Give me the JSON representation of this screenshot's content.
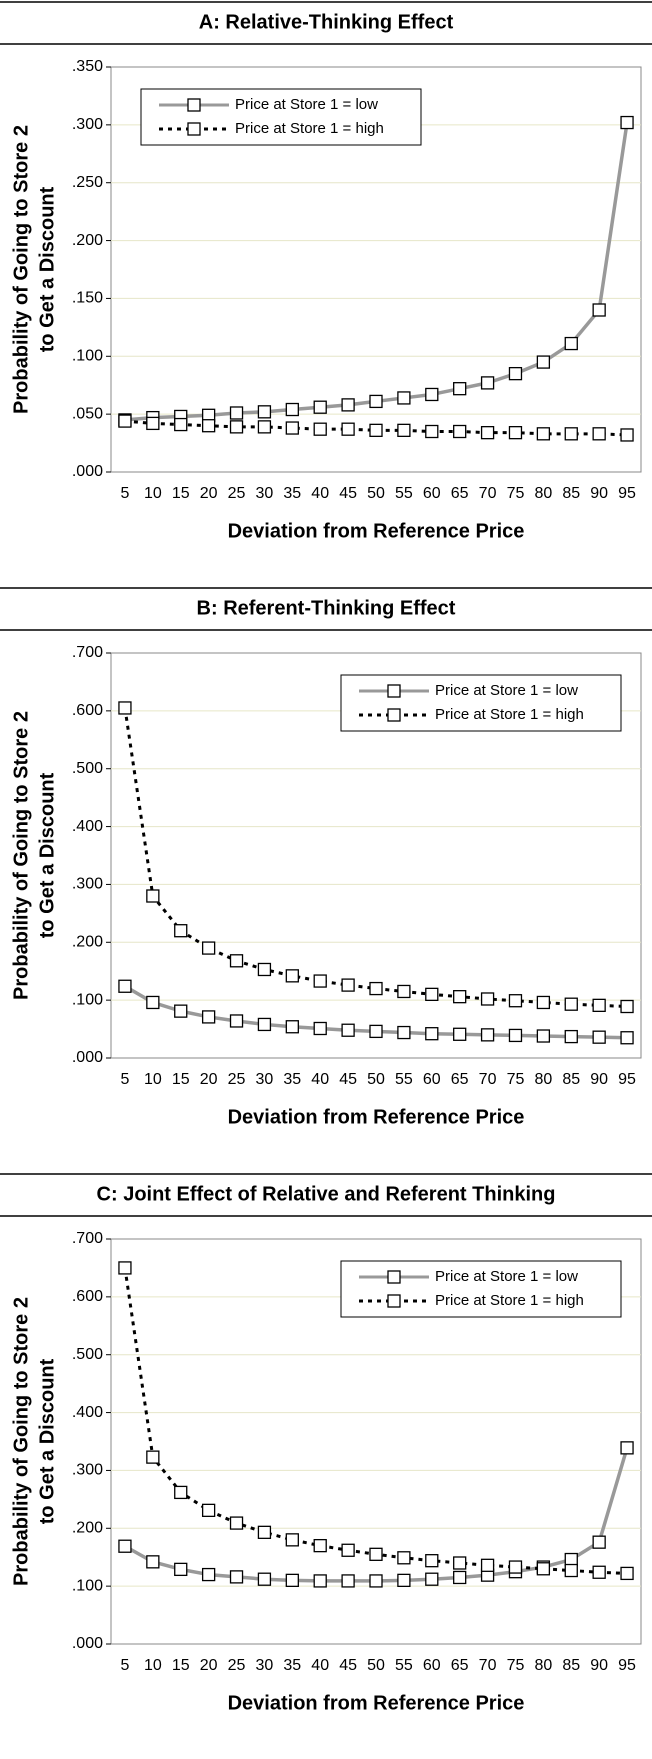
{
  "chart_data": [
    {
      "type": "line",
      "title": "A: Relative-Thinking Effect",
      "xlabel": "Deviation from Reference Price",
      "ylabel": [
        "Probability of Going to Store 2",
        "to Get a Discount"
      ],
      "categories": [
        5,
        10,
        15,
        20,
        25,
        30,
        35,
        40,
        45,
        50,
        55,
        60,
        65,
        70,
        75,
        80,
        85,
        90,
        95
      ],
      "ylim": [
        0,
        0.35
      ],
      "yticks": [
        {
          "value": 0,
          "label": ".000"
        },
        {
          "value": 0.05,
          "label": ".050"
        },
        {
          "value": 0.1,
          "label": ".100"
        },
        {
          "value": 0.15,
          "label": ".150"
        },
        {
          "value": 0.2,
          "label": ".200"
        },
        {
          "value": 0.25,
          "label": ".250"
        },
        {
          "value": 0.3,
          "label": ".300"
        },
        {
          "value": 0.35,
          "label": ".350"
        }
      ],
      "grid": true,
      "legend": "upper left",
      "series": [
        {
          "name": "Price at Store 1 = low",
          "color": "#999999",
          "dashed": false,
          "values": [
            0.045,
            0.047,
            0.048,
            0.049,
            0.051,
            0.052,
            0.054,
            0.056,
            0.058,
            0.061,
            0.064,
            0.067,
            0.072,
            0.077,
            0.085,
            0.095,
            0.111,
            0.14,
            0.302
          ]
        },
        {
          "name": "Price at Store 1 = high",
          "color": "#000000",
          "dashed": true,
          "values": [
            0.044,
            0.042,
            0.041,
            0.04,
            0.039,
            0.039,
            0.038,
            0.037,
            0.037,
            0.036,
            0.036,
            0.035,
            0.035,
            0.034,
            0.034,
            0.033,
            0.033,
            0.033,
            0.032
          ]
        }
      ]
    },
    {
      "type": "line",
      "title": "B: Referent-Thinking Effect",
      "xlabel": "Deviation from Reference Price",
      "ylabel": [
        "Probability of Going to Store 2",
        "to Get a Discount"
      ],
      "categories": [
        5,
        10,
        15,
        20,
        25,
        30,
        35,
        40,
        45,
        50,
        55,
        60,
        65,
        70,
        75,
        80,
        85,
        90,
        95
      ],
      "ylim": [
        0,
        0.7
      ],
      "yticks": [
        {
          "value": 0,
          "label": ".000"
        },
        {
          "value": 0.1,
          "label": ".100"
        },
        {
          "value": 0.2,
          "label": ".200"
        },
        {
          "value": 0.3,
          "label": ".300"
        },
        {
          "value": 0.4,
          "label": ".400"
        },
        {
          "value": 0.5,
          "label": ".500"
        },
        {
          "value": 0.6,
          "label": ".600"
        },
        {
          "value": 0.7,
          "label": ".700"
        }
      ],
      "grid": true,
      "legend": "upper right",
      "series": [
        {
          "name": "Price at Store 1 = low",
          "color": "#999999",
          "dashed": false,
          "values": [
            0.124,
            0.096,
            0.081,
            0.071,
            0.064,
            0.058,
            0.054,
            0.051,
            0.048,
            0.046,
            0.044,
            0.042,
            0.041,
            0.04,
            0.039,
            0.038,
            0.037,
            0.036,
            0.035
          ]
        },
        {
          "name": "Price at Store 1 = high",
          "color": "#000000",
          "dashed": true,
          "values": [
            0.605,
            0.28,
            0.22,
            0.19,
            0.168,
            0.153,
            0.142,
            0.133,
            0.126,
            0.12,
            0.115,
            0.11,
            0.106,
            0.102,
            0.099,
            0.096,
            0.093,
            0.091,
            0.089
          ]
        }
      ]
    },
    {
      "type": "line",
      "title": "C: Joint Effect of Relative and Referent Thinking",
      "xlabel": "Deviation from Reference Price",
      "ylabel": [
        "Probability of Going to Store 2",
        "to Get a Discount"
      ],
      "categories": [
        5,
        10,
        15,
        20,
        25,
        30,
        35,
        40,
        45,
        50,
        55,
        60,
        65,
        70,
        75,
        80,
        85,
        90,
        95
      ],
      "ylim": [
        0,
        0.7
      ],
      "yticks": [
        {
          "value": 0,
          "label": ".000"
        },
        {
          "value": 0.1,
          "label": ".100"
        },
        {
          "value": 0.2,
          "label": ".200"
        },
        {
          "value": 0.3,
          "label": ".300"
        },
        {
          "value": 0.4,
          "label": ".400"
        },
        {
          "value": 0.5,
          "label": ".500"
        },
        {
          "value": 0.6,
          "label": ".600"
        },
        {
          "value": 0.7,
          "label": ".700"
        }
      ],
      "grid": true,
      "legend": "upper right",
      "series": [
        {
          "name": "Price at Store 1 = low",
          "color": "#999999",
          "dashed": false,
          "values": [
            0.169,
            0.142,
            0.129,
            0.12,
            0.116,
            0.112,
            0.11,
            0.109,
            0.109,
            0.109,
            0.11,
            0.112,
            0.115,
            0.119,
            0.125,
            0.133,
            0.146,
            0.176,
            0.339
          ]
        },
        {
          "name": "Price at Store 1 = high",
          "color": "#000000",
          "dashed": true,
          "values": [
            0.65,
            0.323,
            0.262,
            0.231,
            0.209,
            0.193,
            0.18,
            0.17,
            0.162,
            0.155,
            0.149,
            0.144,
            0.14,
            0.136,
            0.133,
            0.13,
            0.127,
            0.124,
            0.122
          ]
        }
      ]
    }
  ]
}
